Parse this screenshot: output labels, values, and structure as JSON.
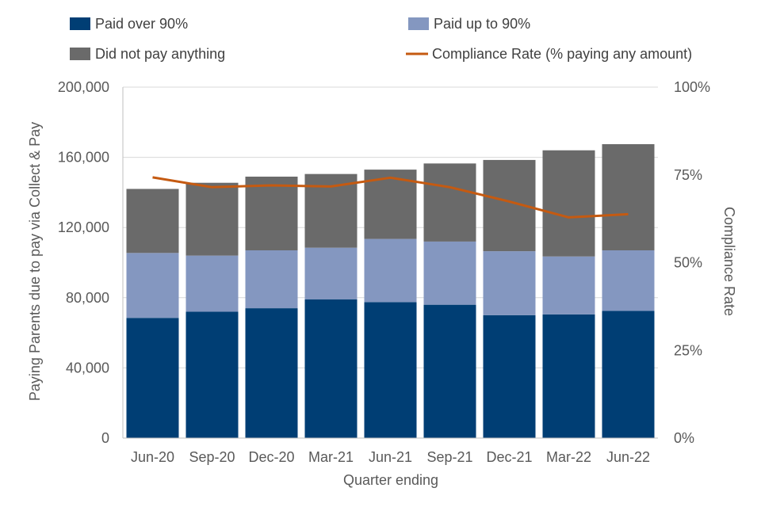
{
  "chart_data": {
    "type": "bar",
    "stacked": true,
    "categories": [
      "Jun-20",
      "Sep-20",
      "Dec-20",
      "Mar-21",
      "Jun-21",
      "Sep-21",
      "Dec-21",
      "Mar-22",
      "Jun-22"
    ],
    "series": [
      {
        "name": "Paid over 90%",
        "color": "#003E74",
        "values": [
          68500,
          72000,
          74000,
          79000,
          77500,
          76000,
          70000,
          70500,
          72500
        ]
      },
      {
        "name": "Paid up to 90%",
        "color": "#8497C0",
        "values": [
          37000,
          32000,
          33000,
          29500,
          36000,
          36000,
          36500,
          33000,
          34500
        ]
      },
      {
        "name": "Did not pay anything",
        "color": "#6A6A6A",
        "values": [
          36500,
          41500,
          42000,
          42000,
          39500,
          44500,
          52000,
          60500,
          60500
        ]
      }
    ],
    "line_series": {
      "name": "Compliance Rate (% paying any amount)",
      "color": "#C55A11",
      "values": [
        74.3,
        71.5,
        72.0,
        71.7,
        74.2,
        71.5,
        67.4,
        62.9,
        63.8
      ]
    },
    "xlabel": "Quarter ending",
    "ylabel": "Paying Parents due to pay via Collect & Pay",
    "y2label": "Compliance Rate",
    "ylim": [
      0,
      200000
    ],
    "y2lim": [
      0,
      100
    ],
    "yticks": [
      "0",
      "40,000",
      "80,000",
      "120,000",
      "160,000",
      "200,000"
    ],
    "y2ticks": [
      "0%",
      "25%",
      "50%",
      "75%",
      "100%"
    ],
    "grid": true,
    "legend_position": "top"
  }
}
